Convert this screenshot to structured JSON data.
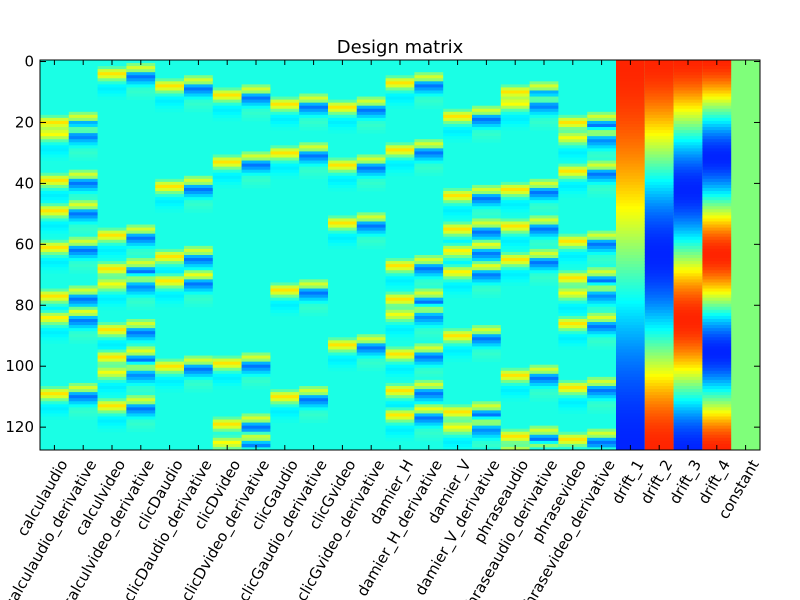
{
  "chart_data": {
    "type": "heatmap",
    "title": "Design matrix",
    "xlabel": "",
    "ylabel": "",
    "n_scans": 128,
    "y_ticks": [
      0,
      20,
      40,
      60,
      80,
      100,
      120
    ],
    "ylim": [
      127.5,
      -0.5
    ],
    "colormap": "jet",
    "colors": {
      "background_cell": "#2effc8",
      "stimulus_pos": "#ff2000",
      "stimulus_neg": "#0000ff"
    },
    "columns": [
      {
        "label": "calculaudio",
        "kind": "regressor",
        "onsets": [
          17,
          21,
          36,
          46,
          58,
          74,
          81,
          106
        ]
      },
      {
        "label": "calculaudio_derivative",
        "kind": "derivative",
        "source": 0
      },
      {
        "label": "calculvideo",
        "kind": "regressor",
        "onsets": [
          1,
          54,
          65,
          70,
          85,
          94,
          99,
          110
        ]
      },
      {
        "label": "calculvideo_derivative",
        "kind": "derivative",
        "source": 2
      },
      {
        "label": "clicDaudio",
        "kind": "regressor",
        "onsets": [
          5,
          38,
          61,
          69,
          97
        ]
      },
      {
        "label": "clicDaudio_derivative",
        "kind": "derivative",
        "source": 4
      },
      {
        "label": "clicDvideo",
        "kind": "regressor",
        "onsets": [
          8,
          30,
          96,
          116,
          122
        ]
      },
      {
        "label": "clicDvideo_derivative",
        "kind": "derivative",
        "source": 6
      },
      {
        "label": "clicGaudio",
        "kind": "regressor",
        "onsets": [
          11,
          27,
          72,
          107
        ]
      },
      {
        "label": "clicGaudio_derivative",
        "kind": "derivative",
        "source": 8
      },
      {
        "label": "clicGvideo",
        "kind": "regressor",
        "onsets": [
          12,
          31,
          50,
          90
        ]
      },
      {
        "label": "clicGvideo_derivative",
        "kind": "derivative",
        "source": 10
      },
      {
        "label": "damier_H",
        "kind": "regressor",
        "onsets": [
          4,
          26,
          64,
          75,
          80,
          93,
          105,
          113
        ]
      },
      {
        "label": "damier_H_derivative",
        "kind": "derivative",
        "source": 12
      },
      {
        "label": "damier_V",
        "kind": "regressor",
        "onsets": [
          15,
          41,
          52,
          59,
          66,
          87,
          112,
          117
        ]
      },
      {
        "label": "damier_V_derivative",
        "kind": "derivative",
        "source": 14
      },
      {
        "label": "phraseaudio",
        "kind": "regressor",
        "onsets": [
          7,
          11,
          39,
          51,
          62,
          100,
          120,
          125
        ]
      },
      {
        "label": "phraseaudio_derivative",
        "kind": "derivative",
        "source": 16
      },
      {
        "label": "phrasevideo",
        "kind": "regressor",
        "onsets": [
          17,
          22,
          33,
          56,
          68,
          73,
          83,
          104,
          121
        ]
      },
      {
        "label": "phrasevideo_derivative",
        "kind": "derivative",
        "source": 18
      },
      {
        "label": "drift_1",
        "kind": "drift",
        "order": 1
      },
      {
        "label": "drift_2",
        "kind": "drift",
        "order": 2
      },
      {
        "label": "drift_3",
        "kind": "drift",
        "order": 3
      },
      {
        "label": "drift_4",
        "kind": "drift",
        "order": 4
      },
      {
        "label": "constant",
        "kind": "constant"
      }
    ]
  }
}
